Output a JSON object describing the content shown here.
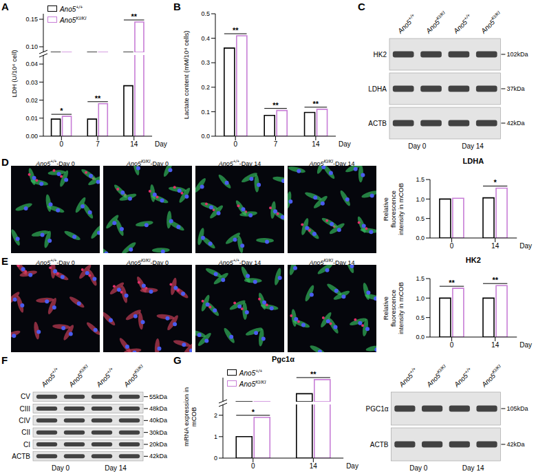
{
  "chart_data": [
    {
      "panel": "A",
      "type": "bar",
      "ylabel": "LDH (U/10⁴ cell)",
      "xlabel": "Day",
      "categories": [
        "0",
        "7",
        "14"
      ],
      "series": [
        {
          "name": "Ano5+/+",
          "color": "#000000",
          "values": [
            0.0095,
            0.0095,
            0.028
          ]
        },
        {
          "name": "Ano5KI/KI",
          "color": "#c77dd6",
          "values": [
            0.011,
            0.018,
            0.145
          ]
        }
      ],
      "ylim": [
        0,
        0.16
      ],
      "ybreak": [
        0.045,
        0.09
      ],
      "yticks": [
        {
          "value": 0,
          "label": "0.00"
        },
        0.01,
        0.02,
        0.03,
        0.04,
        {
          "value": 0.1,
          "label": "0.10"
        },
        0.15
      ],
      "significance": [
        "*",
        "**",
        "**"
      ],
      "legend": "upper left"
    },
    {
      "panel": "B",
      "type": "bar",
      "ylabel": "Lactate content (mM/10⁴ cells)",
      "xlabel": "Day",
      "categories": [
        "0",
        "7",
        "14"
      ],
      "series": [
        {
          "color": "#000000",
          "values": [
            0.36,
            0.085,
            0.097
          ]
        },
        {
          "color": "#c77dd6",
          "values": [
            0.41,
            0.105,
            0.11
          ]
        }
      ],
      "ylim": [
        0,
        0.5
      ],
      "yticks": [
        {
          "value": 0,
          "label": "0.0"
        },
        0.1,
        0.2,
        0.3,
        0.4,
        0.5
      ],
      "significance": [
        "**",
        "**",
        "**"
      ]
    },
    {
      "type": "bar",
      "title": "LDHA",
      "ylabel": "Relative fluorescence intensity in mCOB",
      "xlabel": "Day",
      "categories": [
        "0",
        "14"
      ],
      "series": [
        {
          "color": "#000000",
          "values": [
            1.0,
            1.03
          ]
        },
        {
          "color": "#c77dd6",
          "values": [
            1.02,
            1.28
          ]
        }
      ],
      "ylim": [
        0,
        1.5
      ],
      "yticks": [
        {
          "value": 0,
          "label": "0.0"
        },
        0.5,
        {
          "value": 1,
          "label": "1.0"
        },
        1.5
      ],
      "significance": [
        null,
        "*"
      ]
    },
    {
      "type": "bar",
      "title": "HK2",
      "ylabel": "Relative fluorescence intensity in mCOB",
      "xlabel": "Day",
      "categories": [
        "0",
        "14"
      ],
      "series": [
        {
          "color": "#000000",
          "values": [
            1.0,
            1.0
          ]
        },
        {
          "color": "#c77dd6",
          "values": [
            1.25,
            1.32
          ]
        }
      ],
      "ylim": [
        0,
        1.5
      ],
      "yticks": [
        {
          "value": 0,
          "label": "0.0"
        },
        0.5,
        {
          "value": 1,
          "label": "1.0"
        },
        1.5
      ],
      "significance": [
        "**",
        "**"
      ]
    },
    {
      "panel": "G",
      "type": "bar",
      "title": "Pgc1α",
      "ylabel": "mRNA expression in mCOB",
      "xlabel": "Day",
      "categories": [
        "0",
        "14"
      ],
      "series": [
        {
          "name": "Ano5+/+",
          "color": "#000000",
          "values": [
            1.0,
            7.0
          ]
        },
        {
          "name": "Ano5KI/KI",
          "color": "#c77dd6",
          "values": [
            1.9,
            10.5
          ]
        }
      ],
      "ylim": [
        0,
        11
      ],
      "ybreak": [
        2.5,
        5
      ],
      "yticks": [
        0,
        1,
        2
      ],
      "significance": [
        "*",
        "**"
      ],
      "legend": "upper left"
    }
  ],
  "blots": [
    {
      "panel": "C",
      "columns": [
        "Ano5+/+",
        "Ano5KI/KI",
        "Ano5+/+",
        "Ano5KI/KI"
      ],
      "groups": [
        "Day 0",
        "Day 14"
      ],
      "rows": [
        {
          "label": "HK2",
          "size": "102kDa"
        },
        {
          "label": "LDHA",
          "size": "37kDa"
        },
        {
          "label": "ACTB",
          "size": "42kDa"
        }
      ]
    },
    {
      "panel": "F",
      "columns": [
        "Ano5+/+",
        "Ano5KI/KI",
        "Ano5+/+",
        "Ano5KI/KI"
      ],
      "groups": [
        "Day 0",
        "Day 14"
      ],
      "rows": [
        {
          "label": "CV",
          "size": "55kDa"
        },
        {
          "label": "CIII",
          "size": "48kDa"
        },
        {
          "label": "CIV",
          "size": "40kDa"
        },
        {
          "label": "CII",
          "size": "30kDa"
        },
        {
          "label": "CI",
          "size": "20kDa"
        },
        {
          "label": "ACTB",
          "size": "42kDa"
        }
      ]
    },
    {
      "columns": [
        "Ano5+/+",
        "Ano5KI/KI",
        "Ano5+/+",
        "Ano5KI/KI"
      ],
      "groups": [
        "Day 0",
        "Day 14"
      ],
      "rows": [
        {
          "label": "PGC1α",
          "size": "105kDa"
        },
        {
          "label": "ACTB",
          "size": "42kDa"
        }
      ]
    }
  ],
  "images": [
    {
      "panel": "D",
      "labels": [
        "Ano5+/+-Day 0",
        "Ano5KI/KI-Day 0",
        "Ano5+/+-Day 14",
        "Ano5KI/KI-Day 14"
      ]
    },
    {
      "panel": "E",
      "labels": [
        "Ano5+/+-Day 0",
        "Ano5KI/KI-Day 0",
        "Ano5+/+-Day 14",
        "Ano5KI/KI-Day 14"
      ]
    }
  ]
}
